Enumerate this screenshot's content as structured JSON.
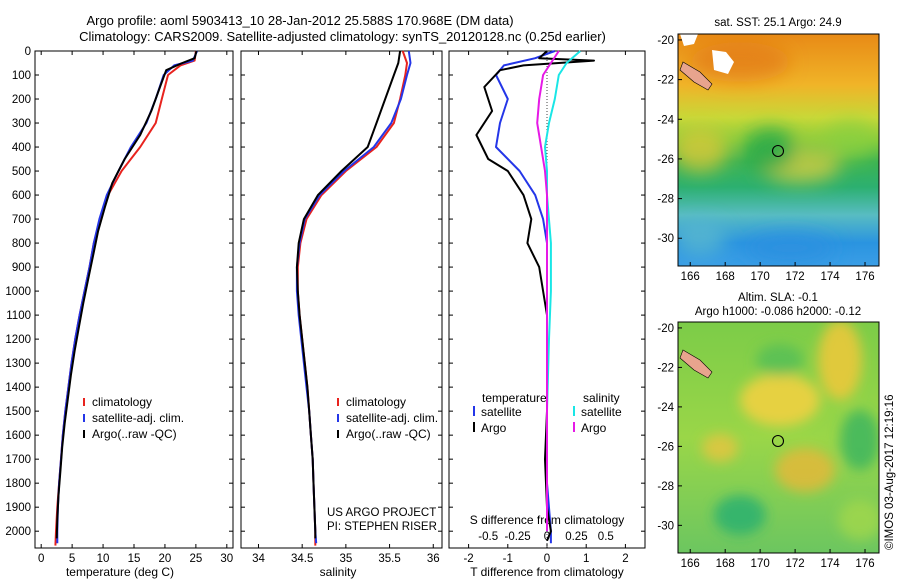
{
  "header": {
    "line1": "Argo profile: aoml 5903413_10 28-Jan-2012 25.588S 170.968E (DM data)",
    "line2": "Climatology: CARS2009. Satellite-adjusted climatology: synTS_20120128.nc (0.25d earlier)"
  },
  "depth_ticks": [
    0,
    100,
    200,
    300,
    400,
    500,
    600,
    700,
    800,
    900,
    1000,
    1100,
    1200,
    1300,
    1400,
    1500,
    1600,
    1700,
    1800,
    1900,
    2000
  ],
  "chart_data": [
    {
      "type": "line",
      "xlabel": "temperature (deg C)",
      "ylabel": "",
      "xlim": [
        -1,
        31
      ],
      "ylim": [
        2070,
        0
      ],
      "xticks": [
        0,
        5,
        10,
        15,
        20,
        25,
        30
      ],
      "legend": [
        "climatology",
        "satellite-adj. clim.",
        "Argo(..raw -QC)"
      ],
      "legend_placement": "lower-right",
      "series": [
        {
          "name": "climatology",
          "color": "#e8231e",
          "points": [
            [
              25,
              0
            ],
            [
              24.8,
              40
            ],
            [
              22.5,
              60
            ],
            [
              20.5,
              100
            ],
            [
              19.5,
              200
            ],
            [
              18.5,
              300
            ],
            [
              16,
              400
            ],
            [
              13,
              500
            ],
            [
              10.8,
              600
            ],
            [
              9.5,
              700
            ],
            [
              8.5,
              800
            ],
            [
              7.8,
              900
            ],
            [
              7,
              1000
            ],
            [
              6.2,
              1100
            ],
            [
              5.5,
              1200
            ],
            [
              4.9,
              1300
            ],
            [
              4.4,
              1400
            ],
            [
              3.9,
              1500
            ],
            [
              3.5,
              1600
            ],
            [
              3.2,
              1700
            ],
            [
              2.9,
              1800
            ],
            [
              2.6,
              1900
            ],
            [
              2.4,
              2000
            ],
            [
              2.3,
              2060
            ]
          ]
        },
        {
          "name": "satellite-adj. clim.",
          "color": "#2436e8",
          "points": [
            [
              25.2,
              0
            ],
            [
              24.5,
              40
            ],
            [
              21.5,
              60
            ],
            [
              19.8,
              100
            ],
            [
              18.5,
              200
            ],
            [
              17,
              300
            ],
            [
              14.5,
              400
            ],
            [
              12.5,
              500
            ],
            [
              10.6,
              600
            ],
            [
              9.4,
              700
            ],
            [
              8.5,
              800
            ],
            [
              7.8,
              900
            ],
            [
              7,
              1000
            ],
            [
              6.2,
              1100
            ],
            [
              5.5,
              1200
            ],
            [
              4.9,
              1300
            ],
            [
              4.4,
              1400
            ],
            [
              3.9,
              1500
            ],
            [
              3.5,
              1600
            ],
            [
              3.2,
              1700
            ],
            [
              2.9,
              1800
            ],
            [
              2.7,
              1900
            ],
            [
              2.6,
              2000
            ],
            [
              2.6,
              2050
            ]
          ]
        },
        {
          "name": "Argo(..raw -QC)",
          "color": "#000000",
          "points": [
            [
              25.1,
              0
            ],
            [
              24.8,
              30
            ],
            [
              22.8,
              50
            ],
            [
              20.2,
              80
            ],
            [
              19.2,
              150
            ],
            [
              17.8,
              250
            ],
            [
              16,
              350
            ],
            [
              13.5,
              450
            ],
            [
              11.5,
              550
            ],
            [
              10.3,
              650
            ],
            [
              9.2,
              750
            ],
            [
              8.4,
              850
            ],
            [
              7.6,
              950
            ],
            [
              6.8,
              1050
            ],
            [
              6.1,
              1150
            ],
            [
              5.4,
              1250
            ],
            [
              4.8,
              1350
            ],
            [
              4.3,
              1450
            ],
            [
              3.8,
              1550
            ],
            [
              3.4,
              1650
            ],
            [
              3.1,
              1750
            ],
            [
              2.8,
              1850
            ],
            [
              2.6,
              1950
            ],
            [
              2.5,
              2030
            ]
          ]
        }
      ]
    },
    {
      "type": "line",
      "xlabel": "salinity",
      "ylabel": "",
      "xlim": [
        33.8,
        36.1
      ],
      "ylim": [
        2070,
        0
      ],
      "xticks": [
        34,
        34.5,
        35,
        35.5,
        36
      ],
      "legend": [
        "climatology",
        "satellite-adj. clim.",
        "Argo(..raw -QC)"
      ],
      "legend_placement": "lower-right",
      "annotations": [
        "US ARGO PROJECT",
        "PI: STEPHEN RISER"
      ],
      "series": [
        {
          "name": "climatology",
          "color": "#e8231e",
          "points": [
            [
              35.65,
              0
            ],
            [
              35.7,
              50
            ],
            [
              35.68,
              100
            ],
            [
              35.62,
              200
            ],
            [
              35.55,
              300
            ],
            [
              35.35,
              400
            ],
            [
              35.0,
              500
            ],
            [
              34.72,
              600
            ],
            [
              34.55,
              700
            ],
            [
              34.48,
              800
            ],
            [
              34.45,
              900
            ],
            [
              34.45,
              1000
            ],
            [
              34.47,
              1100
            ],
            [
              34.5,
              1200
            ],
            [
              34.53,
              1300
            ],
            [
              34.56,
              1400
            ],
            [
              34.58,
              1500
            ],
            [
              34.6,
              1600
            ],
            [
              34.62,
              1700
            ],
            [
              34.63,
              1800
            ],
            [
              34.64,
              1900
            ],
            [
              34.65,
              2000
            ],
            [
              34.65,
              2060
            ]
          ]
        },
        {
          "name": "satellite-adj. clim.",
          "color": "#2436e8",
          "points": [
            [
              35.72,
              0
            ],
            [
              35.74,
              50
            ],
            [
              35.7,
              100
            ],
            [
              35.63,
              200
            ],
            [
              35.52,
              300
            ],
            [
              35.32,
              400
            ],
            [
              34.98,
              500
            ],
            [
              34.7,
              600
            ],
            [
              34.53,
              700
            ],
            [
              34.47,
              800
            ],
            [
              34.44,
              900
            ],
            [
              34.44,
              1000
            ],
            [
              34.46,
              1100
            ],
            [
              34.49,
              1200
            ],
            [
              34.52,
              1300
            ],
            [
              34.55,
              1400
            ],
            [
              34.58,
              1500
            ],
            [
              34.6,
              1600
            ],
            [
              34.62,
              1700
            ],
            [
              34.63,
              1800
            ],
            [
              34.64,
              1900
            ],
            [
              34.65,
              2000
            ],
            [
              34.66,
              2050
            ]
          ]
        },
        {
          "name": "Argo(..raw -QC)",
          "color": "#000000",
          "points": [
            [
              35.62,
              0
            ],
            [
              35.6,
              50
            ],
            [
              35.55,
              100
            ],
            [
              35.45,
              200
            ],
            [
              35.35,
              300
            ],
            [
              35.25,
              400
            ],
            [
              34.95,
              500
            ],
            [
              34.68,
              600
            ],
            [
              34.52,
              700
            ],
            [
              34.46,
              800
            ],
            [
              34.44,
              900
            ],
            [
              34.45,
              1000
            ],
            [
              34.47,
              1100
            ],
            [
              34.5,
              1200
            ],
            [
              34.53,
              1300
            ],
            [
              34.56,
              1400
            ],
            [
              34.58,
              1500
            ],
            [
              34.6,
              1600
            ],
            [
              34.62,
              1700
            ],
            [
              34.63,
              1800
            ],
            [
              34.64,
              1900
            ],
            [
              34.65,
              2000
            ],
            [
              34.65,
              2030
            ]
          ]
        }
      ]
    },
    {
      "type": "line",
      "xlabel": "T difference from climatology",
      "top_axis_label": "S difference from climatology",
      "ylabel": "",
      "xlim": [
        -2.5,
        2.5
      ],
      "ylim": [
        2070,
        0
      ],
      "xticks": [
        -2,
        -1,
        0,
        1,
        2
      ],
      "s_xticks": [
        -0.5,
        -0.25,
        0,
        0.25,
        0.5
      ],
      "legend_temperature_title": "temperature",
      "legend_salinity_title": "salinity",
      "legend_temperature": [
        "satellite",
        "Argo"
      ],
      "legend_salinity": [
        "satellite",
        "Argo"
      ],
      "legend_placement": "lower-center",
      "series": [
        {
          "name": "satellite",
          "color": "#2436e8",
          "points": [
            [
              0.2,
              0
            ],
            [
              -0.3,
              30
            ],
            [
              -1.1,
              60
            ],
            [
              -1.3,
              100
            ],
            [
              -1.0,
              200
            ],
            [
              -1.2,
              300
            ],
            [
              -1.3,
              400
            ],
            [
              -0.7,
              500
            ],
            [
              -0.3,
              600
            ],
            [
              -0.1,
              700
            ],
            [
              0,
              800
            ],
            [
              0,
              1000
            ],
            [
              0,
              1200
            ],
            [
              0,
              1500
            ],
            [
              0,
              1800
            ],
            [
              0.1,
              2000
            ],
            [
              0.1,
              2050
            ]
          ]
        },
        {
          "name": "Argo",
          "color": "#000000",
          "points": [
            [
              0,
              0
            ],
            [
              -0.2,
              30
            ],
            [
              1.2,
              40
            ],
            [
              -0.6,
              60
            ],
            [
              -1.2,
              80
            ],
            [
              -1.6,
              150
            ],
            [
              -1.4,
              250
            ],
            [
              -1.8,
              350
            ],
            [
              -1.5,
              450
            ],
            [
              -1.0,
              500
            ],
            [
              -0.6,
              600
            ],
            [
              -0.4,
              700
            ],
            [
              -0.5,
              800
            ],
            [
              -0.2,
              900
            ],
            [
              -0.1,
              1000
            ],
            [
              0,
              1100
            ],
            [
              0,
              1300
            ],
            [
              0,
              1500
            ],
            [
              -0.05,
              1700
            ],
            [
              0,
              1900
            ],
            [
              0.1,
              2000
            ],
            [
              0,
              2040
            ]
          ]
        },
        {
          "name": "satellite (salinity)",
          "color": "#19e6e6",
          "points": [
            [
              0.85,
              0
            ],
            [
              0.5,
              50
            ],
            [
              0.3,
              100
            ],
            [
              0.2,
              200
            ],
            [
              0.05,
              300
            ],
            [
              -0.05,
              400
            ],
            [
              0,
              500
            ],
            [
              0,
              600
            ],
            [
              0.1,
              800
            ],
            [
              0.1,
              1000
            ],
            [
              0.05,
              1200
            ],
            [
              0,
              1500
            ],
            [
              0,
              1800
            ],
            [
              0,
              2000
            ]
          ]
        },
        {
          "name": "Argo (salinity)",
          "color": "#e619e6",
          "points": [
            [
              0.3,
              0
            ],
            [
              0.1,
              50
            ],
            [
              -0.1,
              100
            ],
            [
              -0.2,
              200
            ],
            [
              -0.25,
              300
            ],
            [
              -0.15,
              400
            ],
            [
              -0.05,
              500
            ],
            [
              0,
              600
            ],
            [
              0,
              800
            ],
            [
              0,
              1000
            ],
            [
              0,
              1200
            ],
            [
              0,
              1500
            ],
            [
              0,
              1800
            ],
            [
              0,
              2000
            ]
          ]
        }
      ]
    }
  ],
  "maps": [
    {
      "title": "sat. SST: 25.1  Argo: 24.9",
      "xticks": [
        166,
        168,
        170,
        172,
        174,
        176
      ],
      "yticks": [
        -20,
        -22,
        -24,
        -26,
        -28,
        -30
      ]
    },
    {
      "title_line1": "Altim. SLA: -0.1",
      "title_line2": "Argo h1000: -0.086  h2000: -0.12",
      "xticks": [
        166,
        168,
        170,
        172,
        174,
        176
      ],
      "yticks": [
        -20,
        -22,
        -24,
        -26,
        -28,
        -30
      ]
    }
  ],
  "credit": "©IMOS 03-Aug-2017 12:19:16",
  "colors": {
    "climatology": "#e8231e",
    "satellite": "#2436e8",
    "argo": "#000000",
    "sat_salinity": "#19e6e6",
    "argo_salinity": "#e619e6"
  }
}
